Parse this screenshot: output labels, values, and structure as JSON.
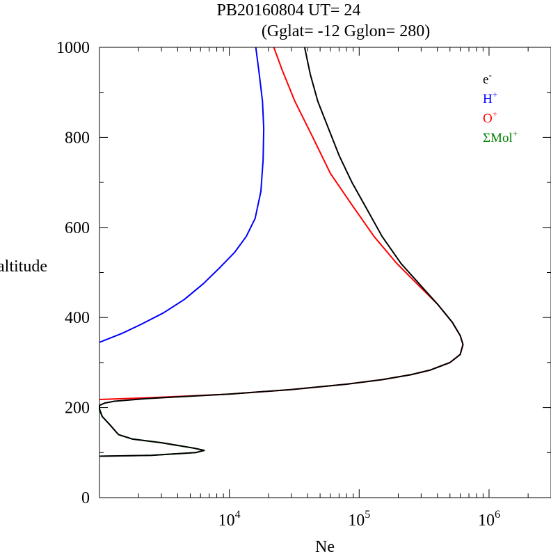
{
  "chart_data": {
    "type": "line",
    "title": "PB20160804   UT=  24",
    "subtitle": "(Gglat= -12   Gglon=  280)",
    "xlabel": "Ne",
    "ylabel": "altitude",
    "x_scale": "log",
    "xlim": [
      1000,
      3000000
    ],
    "ylim": [
      0,
      1000
    ],
    "x_ticks": [
      {
        "value": 10000,
        "base": "10",
        "exp": "4"
      },
      {
        "value": 100000,
        "base": "10",
        "exp": "5"
      },
      {
        "value": 1000000,
        "base": "10",
        "exp": "6"
      }
    ],
    "y_ticks": [
      {
        "value": 0,
        "label": "0"
      },
      {
        "value": 200,
        "label": "200"
      },
      {
        "value": 400,
        "label": "400"
      },
      {
        "value": 600,
        "label": "600"
      },
      {
        "value": 800,
        "label": "800"
      },
      {
        "value": 1000,
        "label": "1000"
      }
    ],
    "grid": false,
    "legend_position": "top-right",
    "series": [
      {
        "name": "e-",
        "legend_base": "e",
        "legend_sup": "-",
        "color": "#000000",
        "points": [
          [
            1000,
            92
          ],
          [
            2500,
            94
          ],
          [
            5500,
            100
          ],
          [
            6400,
            105
          ],
          [
            5300,
            110
          ],
          [
            3000,
            122
          ],
          [
            1800,
            130
          ],
          [
            1400,
            140
          ],
          [
            1200,
            162
          ],
          [
            1050,
            180
          ],
          [
            1000,
            195
          ],
          [
            1000,
            205
          ],
          [
            1100,
            210
          ],
          [
            1300,
            214
          ],
          [
            2300,
            220
          ],
          [
            10000,
            230
          ],
          [
            30000,
            240
          ],
          [
            80000,
            252
          ],
          [
            150000,
            262
          ],
          [
            250000,
            273
          ],
          [
            350000,
            283
          ],
          [
            500000,
            300
          ],
          [
            600000,
            318
          ],
          [
            630000,
            340
          ],
          [
            600000,
            360
          ],
          [
            520000,
            390
          ],
          [
            400000,
            430
          ],
          [
            300000,
            470
          ],
          [
            210000,
            520
          ],
          [
            150000,
            580
          ],
          [
            115000,
            640
          ],
          [
            88000,
            700
          ],
          [
            70000,
            760
          ],
          [
            58000,
            820
          ],
          [
            48000,
            880
          ],
          [
            42000,
            940
          ],
          [
            38000,
            1000
          ]
        ]
      },
      {
        "name": "H+",
        "legend_base": "H",
        "legend_sup": "+",
        "color": "#0000ff",
        "points": [
          [
            1000,
            345
          ],
          [
            1500,
            365
          ],
          [
            2100,
            385
          ],
          [
            3100,
            410
          ],
          [
            4500,
            440
          ],
          [
            6300,
            475
          ],
          [
            8400,
            510
          ],
          [
            11000,
            545
          ],
          [
            13500,
            580
          ],
          [
            15800,
            620
          ],
          [
            17500,
            680
          ],
          [
            18200,
            750
          ],
          [
            18400,
            820
          ],
          [
            18000,
            880
          ],
          [
            17000,
            940
          ],
          [
            16000,
            1000
          ]
        ]
      },
      {
        "name": "O+",
        "legend_base": "O",
        "legend_sup": "+",
        "color": "#ff0000",
        "points": [
          [
            1000,
            218
          ],
          [
            2500,
            222
          ],
          [
            10000,
            230
          ],
          [
            30000,
            240
          ],
          [
            80000,
            252
          ],
          [
            150000,
            262
          ],
          [
            250000,
            273
          ],
          [
            350000,
            283
          ],
          [
            500000,
            300
          ],
          [
            600000,
            318
          ],
          [
            630000,
            340
          ],
          [
            600000,
            360
          ],
          [
            520000,
            390
          ],
          [
            400000,
            430
          ],
          [
            290000,
            470
          ],
          [
            195000,
            520
          ],
          [
            130000,
            580
          ],
          [
            88000,
            650
          ],
          [
            60000,
            720
          ],
          [
            44000,
            800
          ],
          [
            32000,
            880
          ],
          [
            25500,
            950
          ],
          [
            22000,
            1000
          ]
        ]
      },
      {
        "name": "ΣMol+",
        "legend_base": "ΣMol",
        "legend_sup": "+",
        "color": "#008000",
        "points": [
          [
            1000,
            92
          ],
          [
            2500,
            94
          ],
          [
            5500,
            100
          ],
          [
            6400,
            105
          ],
          [
            5300,
            110
          ],
          [
            3000,
            122
          ],
          [
            1800,
            130
          ],
          [
            1400,
            140
          ],
          [
            1200,
            162
          ],
          [
            1050,
            180
          ],
          [
            1000,
            198
          ]
        ]
      }
    ]
  }
}
